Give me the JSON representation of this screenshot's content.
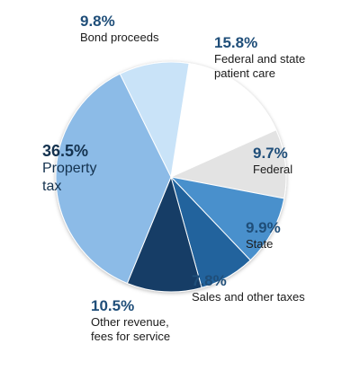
{
  "chart_data": {
    "type": "pie",
    "slices": [
      {
        "label": "Federal and state\npatient care",
        "pct_label": "15.8%",
        "value": 15.8,
        "color": "#ffffff"
      },
      {
        "label": "Federal",
        "pct_label": "9.7%",
        "value": 9.7,
        "color": "#e3e3e3"
      },
      {
        "label": "State",
        "pct_label": "9.9%",
        "value": 9.9,
        "color": "#4a90cc"
      },
      {
        "label": "Sales and other taxes",
        "pct_label": "7.8%",
        "value": 7.8,
        "color": "#23649d"
      },
      {
        "label": "Other revenue,\nfees for service",
        "pct_label": "10.5%",
        "value": 10.5,
        "color": "#143d66"
      },
      {
        "label": "Property\ntax",
        "pct_label": "36.5%",
        "value": 36.5,
        "color": "#8cbbe7"
      },
      {
        "label": "Bond proceeds",
        "pct_label": "9.8%",
        "value": 9.8,
        "color": "#c9e3f8"
      }
    ]
  }
}
